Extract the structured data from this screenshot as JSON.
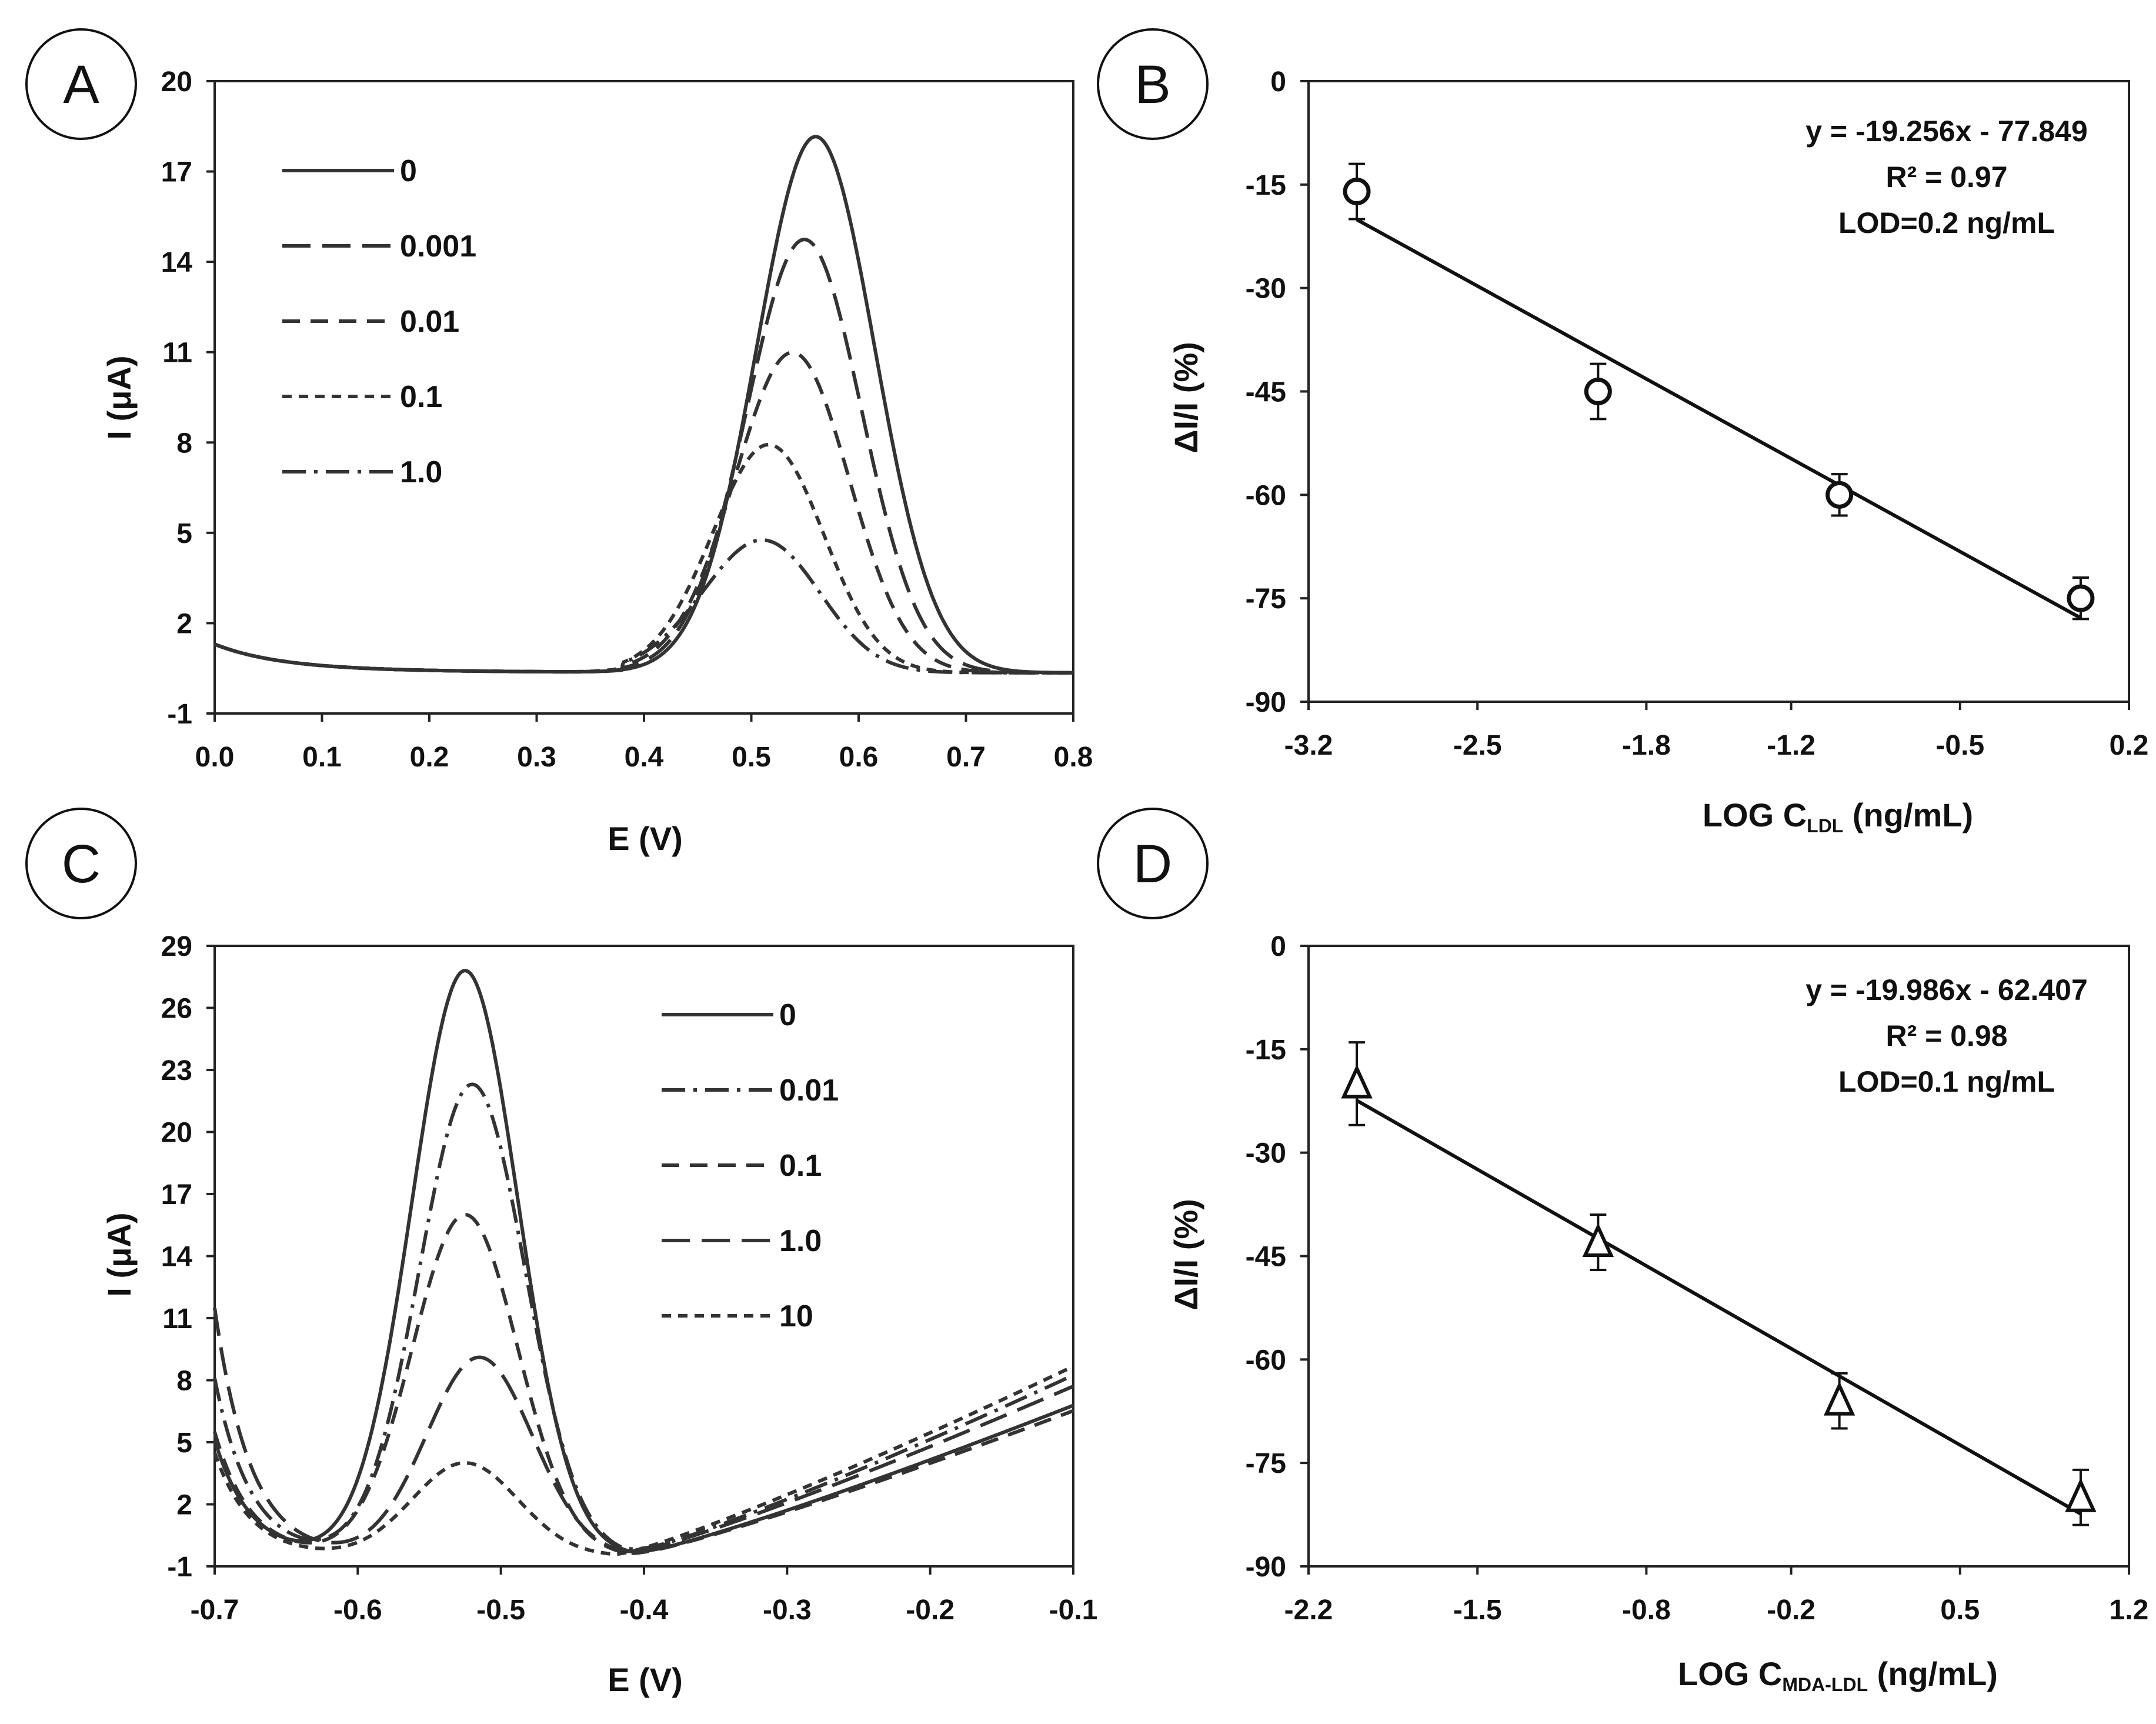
{
  "chart_data": [
    {
      "panel": "A",
      "type": "line",
      "title": "",
      "xlabel": "E (V)",
      "ylabel": "I (μA)",
      "xlim": [
        0.0,
        0.8
      ],
      "ylim": [
        -1,
        20
      ],
      "xticks": [
        "0.0",
        "0.1",
        "0.2",
        "0.3",
        "0.4",
        "0.5",
        "0.6",
        "0.7",
        "0.8"
      ],
      "yticks": [
        "-1",
        "2",
        "5",
        "8",
        "11",
        "14",
        "17",
        "20"
      ],
      "series": [
        {
          "name": "0",
          "dash": "solid",
          "peak_x": 0.56,
          "peak_y": 18.2
        },
        {
          "name": "0.001",
          "dash": "longdash",
          "peak_x": 0.55,
          "peak_y": 14.7
        },
        {
          "name": "0.01",
          "dash": "dash",
          "peak_x": 0.54,
          "peak_y": 10.8
        },
        {
          "name": "0.1",
          "dash": "shortdash",
          "peak_x": 0.52,
          "peak_y": 7.4
        },
        {
          "name": "1.0",
          "dash": "dashdot",
          "peak_x": 0.52,
          "peak_y": 4.0
        }
      ],
      "legend_position": "upper-left"
    },
    {
      "panel": "B",
      "type": "scatter",
      "title": "",
      "xlabel": "LOG C",
      "xlabel_sub": "LDL",
      "xlabel_unit": " (ng/mL)",
      "ylabel": "ΔI/I (%)",
      "xlim": [
        -3.2,
        0.2
      ],
      "ylim": [
        -90,
        0
      ],
      "xticks": [
        "-3.2",
        "-2.5",
        "-1.8",
        "-1.2",
        "-0.5",
        "0.2"
      ],
      "yticks": [
        "0",
        "-15",
        "-30",
        "-45",
        "-60",
        "-75",
        "-90"
      ],
      "marker": "circle",
      "points": [
        {
          "x": -3.0,
          "y": -16,
          "err": 4
        },
        {
          "x": -2.0,
          "y": -45,
          "err": 4
        },
        {
          "x": -1.0,
          "y": -60,
          "err": 3
        },
        {
          "x": 0.0,
          "y": -75,
          "err": 3
        }
      ],
      "fit": {
        "slope": -19.256,
        "intercept": -77.849,
        "x_range": [
          -3.0,
          0.0
        ]
      },
      "annotations": [
        "y = -19.256x - 77.849",
        "R² = 0.97",
        "LOD=0.2 ng/mL"
      ]
    },
    {
      "panel": "C",
      "type": "line",
      "title": "",
      "xlabel": "E (V)",
      "ylabel": "I (μA)",
      "xlim": [
        -0.7,
        -0.1
      ],
      "ylim": [
        -1,
        29
      ],
      "xticks": [
        "-0.7",
        "-0.6",
        "-0.5",
        "-0.4",
        "-0.3",
        "-0.2",
        "-0.1"
      ],
      "yticks": [
        "-1",
        "2",
        "5",
        "8",
        "11",
        "14",
        "17",
        "20",
        "23",
        "26",
        "29"
      ],
      "series": [
        {
          "name": "0",
          "dash": "solid",
          "peak_x": -0.525,
          "peak_y": 28.0
        },
        {
          "name": "0.01",
          "dash": "dashdot",
          "peak_x": -0.52,
          "peak_y": 22.5
        },
        {
          "name": "0.1",
          "dash": "dash",
          "peak_x": -0.525,
          "peak_y": 16.2
        },
        {
          "name": "1.0",
          "dash": "longdash",
          "peak_x": -0.515,
          "peak_y": 9.3
        },
        {
          "name": "10",
          "dash": "shortdash",
          "peak_x": -0.525,
          "peak_y": 4.2
        }
      ],
      "legend_position": "upper-right"
    },
    {
      "panel": "D",
      "type": "scatter",
      "title": "",
      "xlabel": "LOG C",
      "xlabel_sub": "MDA-LDL",
      "xlabel_unit": " (ng/mL)",
      "ylabel": "ΔI/I (%)",
      "xlim": [
        -2.2,
        1.2
      ],
      "ylim": [
        -90,
        0
      ],
      "xticks": [
        "-2.2",
        "-1.5",
        "-0.8",
        "-0.2",
        "0.5",
        "1.2"
      ],
      "yticks": [
        "0",
        "-15",
        "-30",
        "-45",
        "-60",
        "-75",
        "-90"
      ],
      "marker": "triangle",
      "points": [
        {
          "x": -2.0,
          "y": -20,
          "err": 6
        },
        {
          "x": -1.0,
          "y": -43,
          "err": 4
        },
        {
          "x": 0.0,
          "y": -66,
          "err": 4
        },
        {
          "x": 1.0,
          "y": -80,
          "err": 4
        }
      ],
      "fit": {
        "slope": -19.986,
        "intercept": -62.407,
        "x_range": [
          -2.0,
          1.0
        ]
      },
      "annotations": [
        "y = -19.986x - 62.407",
        "R² = 0.98",
        "LOD=0.1 ng/mL"
      ]
    }
  ]
}
